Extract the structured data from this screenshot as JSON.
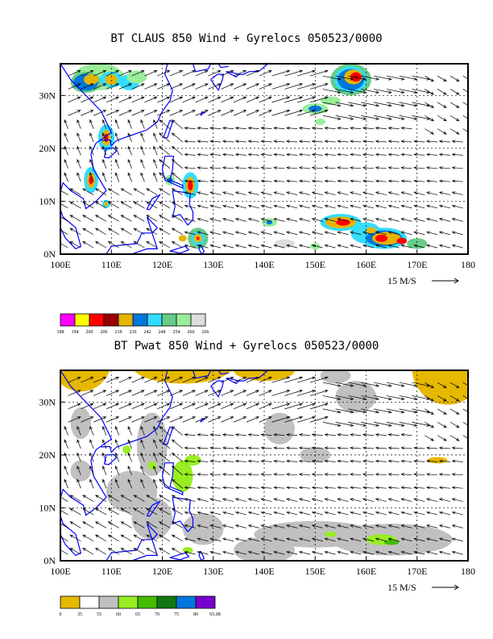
{
  "panels": [
    {
      "title": "BT CLAUS 850 Wind + Gyrelocs 050523/0000",
      "x_ticks": [
        "100E",
        "110E",
        "120E",
        "130E",
        "140E",
        "150E",
        "160E",
        "170E",
        "180"
      ],
      "y_ticks": [
        "0N",
        "10N",
        "20N",
        "30N"
      ],
      "ref_vector_label": "15 M/S",
      "legend": {
        "colors": [
          "#ff00ff",
          "#ffff00",
          "#ff0000",
          "#990000",
          "#e6b400",
          "#0077dd",
          "#33ddff",
          "#66cc88",
          "#99ee99",
          "#dddddd"
        ],
        "labels": [
          "188",
          "194",
          "200",
          "206",
          "218",
          "230",
          "242",
          "248",
          "254",
          "260",
          "266"
        ]
      },
      "shading": "cold cloud-top brightness temperature (K)"
    },
    {
      "title": "BT Pwat 850 Wind + Gyrelocs 050523/0000",
      "x_ticks": [
        "100E",
        "110E",
        "120E",
        "130E",
        "140E",
        "150E",
        "160E",
        "170E",
        "180"
      ],
      "y_ticks": [
        "0N",
        "10N",
        "20N",
        "30N"
      ],
      "ref_vector_label": "15 M/S",
      "legend": {
        "colors": [
          "#e6b800",
          "#ffffff",
          "#c0c0c0",
          "#99ee22",
          "#44bb00",
          "#117711",
          "#0077dd",
          "#7700cc"
        ],
        "labels": [
          "0",
          "35",
          "55",
          "60",
          "65",
          "70",
          "75",
          "80",
          "65.08"
        ]
      },
      "shading": "precipitable water (mm)"
    }
  ],
  "map_extent": {
    "lon": [
      100,
      180
    ],
    "lat": [
      0,
      36
    ]
  },
  "colors": {
    "coast": "#0000ff",
    "frame": "#000000",
    "grid": "#000000"
  }
}
